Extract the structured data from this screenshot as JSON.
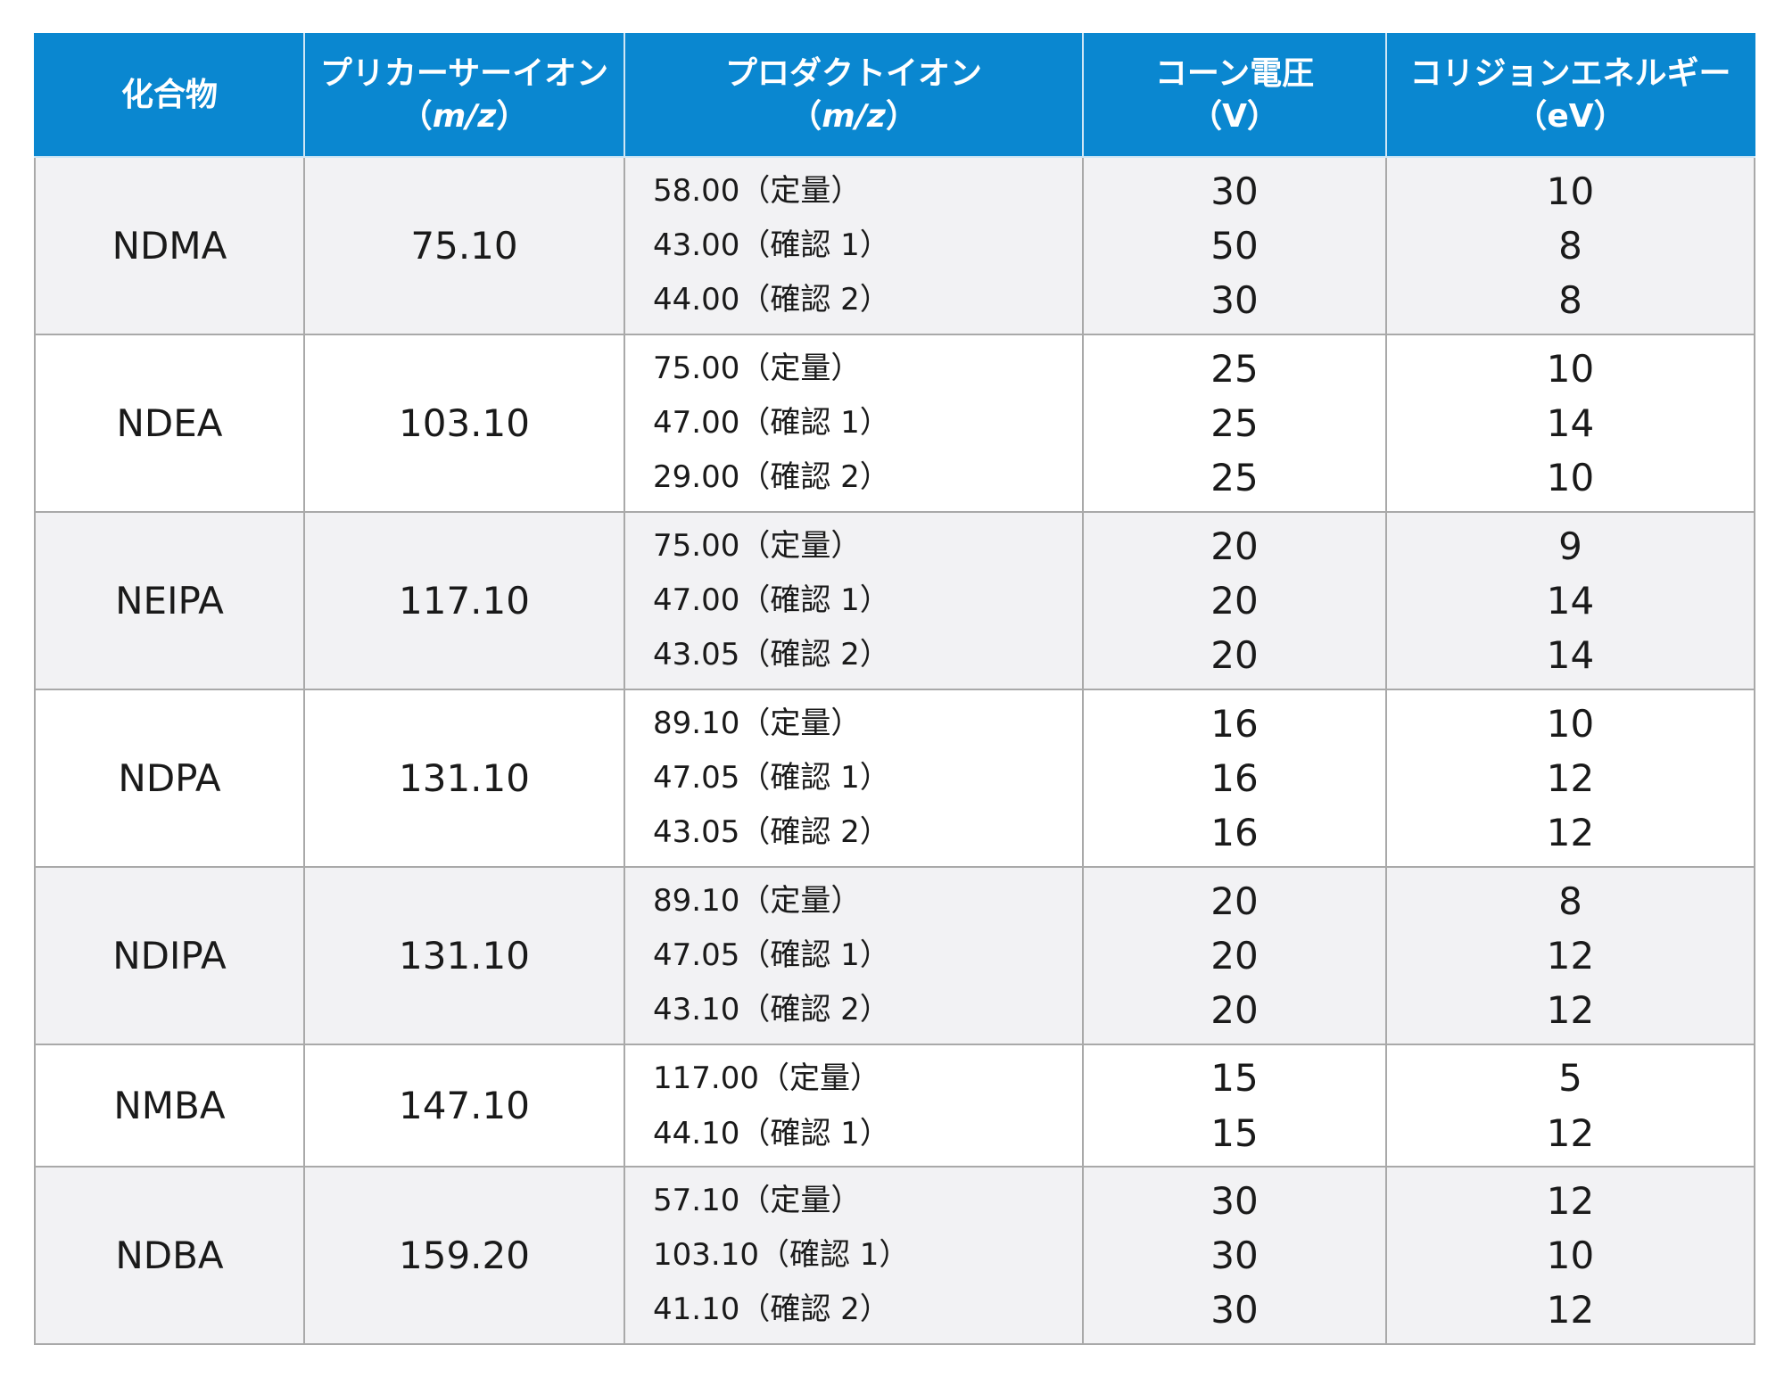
{
  "table": {
    "headers": {
      "compound": "化合物",
      "precursor": {
        "label": "プリカーサーイオン",
        "unit": "m/z"
      },
      "product": {
        "label": "プロダクトイオン",
        "unit": "m/z"
      },
      "cone": {
        "label": "コーン電圧",
        "unit": "（V）"
      },
      "energy": {
        "label": "コリジョンエネルギー",
        "unit": "（eV）"
      }
    },
    "rows": [
      {
        "compound": "NDMA",
        "precursor": "75.10",
        "products": [
          "58.00（定量）",
          "43.00（確認 1）",
          "44.00（確認 2）"
        ],
        "cone": [
          "30",
          "50",
          "30"
        ],
        "energy": [
          "10",
          "8",
          "8"
        ]
      },
      {
        "compound": "NDEA",
        "precursor": "103.10",
        "products": [
          "75.00（定量）",
          "47.00（確認 1）",
          "29.00（確認 2）"
        ],
        "cone": [
          "25",
          "25",
          "25"
        ],
        "energy": [
          "10",
          "14",
          "10"
        ]
      },
      {
        "compound": "NEIPA",
        "precursor": "117.10",
        "products": [
          "75.00（定量）",
          "47.00（確認 1）",
          "43.05（確認 2）"
        ],
        "cone": [
          "20",
          "20",
          "20"
        ],
        "energy": [
          "9",
          "14",
          "14"
        ]
      },
      {
        "compound": "NDPA",
        "precursor": "131.10",
        "products": [
          "89.10（定量）",
          "47.05（確認 1）",
          "43.05（確認 2）"
        ],
        "cone": [
          "16",
          "16",
          "16"
        ],
        "energy": [
          "10",
          "12",
          "12"
        ]
      },
      {
        "compound": "NDIPA",
        "precursor": "131.10",
        "products": [
          "89.10（定量）",
          "47.05（確認 1）",
          "43.10（確認 2）"
        ],
        "cone": [
          "20",
          "20",
          "20"
        ],
        "energy": [
          "8",
          "12",
          "12"
        ]
      },
      {
        "compound": "NMBA",
        "precursor": "147.10",
        "products": [
          "117.00（定量）",
          "44.10（確認 1）"
        ],
        "cone": [
          "15",
          "15"
        ],
        "energy": [
          "5",
          "12"
        ]
      },
      {
        "compound": "NDBA",
        "precursor": "159.20",
        "products": [
          "57.10（定量）",
          "103.10（確認 1）",
          "41.10（確認 2）"
        ],
        "cone": [
          "30",
          "30",
          "30"
        ],
        "energy": [
          "12",
          "10",
          "12"
        ]
      }
    ]
  }
}
